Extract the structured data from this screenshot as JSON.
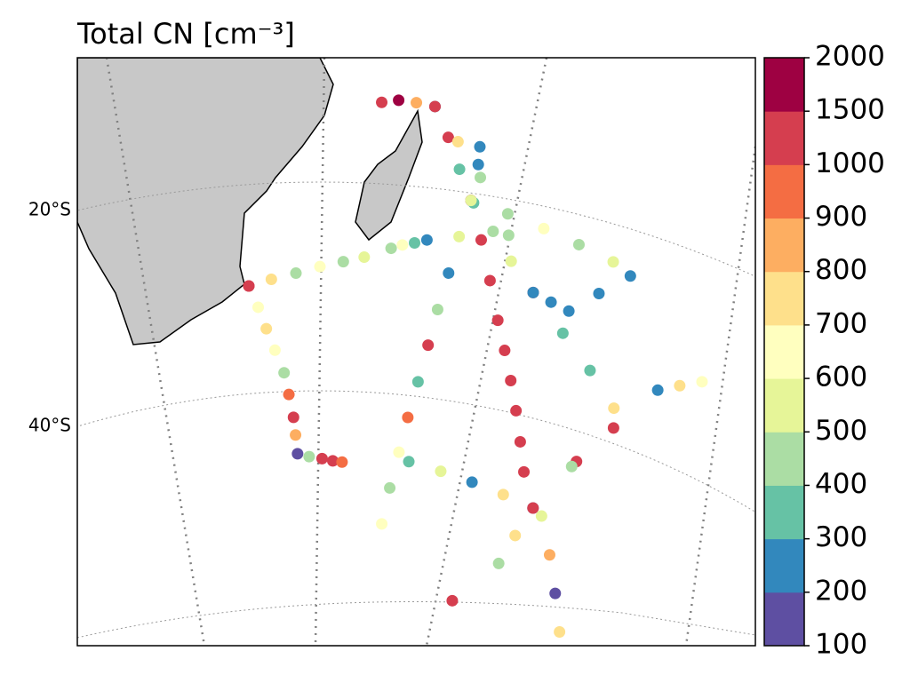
{
  "chart_data": {
    "type": "scatter",
    "title": "Total CN [cm⁻³]",
    "yticks": [
      {
        "value": -20,
        "label": "20°S"
      },
      {
        "value": -40,
        "label": "40°S"
      }
    ],
    "colorbar": {
      "bounds": [
        100,
        200,
        300,
        400,
        500,
        600,
        700,
        800,
        900,
        1000,
        1500,
        2000
      ],
      "colors": [
        "#5e4fa2",
        "#3288bd",
        "#66c2a5",
        "#abdda4",
        "#e6f598",
        "#ffffbf",
        "#fee08b",
        "#fdae61",
        "#f46d43",
        "#d53e4f",
        "#9e0142"
      ]
    },
    "tracks": [
      {
        "lon": [
          31.9,
          34.5,
          37.3,
          40.0,
          42.6,
          44.9
        ],
        "lat": [
          -29.7,
          -29.2,
          -28.7,
          -28.1,
          -27.6,
          -27.1
        ],
        "values": [
          1200,
          750,
          450,
          650,
          480,
          550
        ]
      },
      {
        "lon": [
          47.8,
          49.0,
          50.3,
          51.6
        ],
        "lat": [
          -26.1,
          -25.7,
          -25.4,
          -25.0
        ],
        "values": [
          450,
          600,
          350,
          250
        ]
      },
      {
        "lon": [
          31.9,
          32.8,
          33.6,
          34.5,
          35.5,
          36.0,
          36.5,
          36.7,
          36.9,
          38.5,
          40.3,
          41.8,
          43.1
        ],
        "lat": [
          -29.7,
          -31.8,
          -33.9,
          -36.0,
          -38.2,
          -40.3,
          -42.5,
          -44.2,
          -46.0,
          -46.3,
          -46.5,
          -46.7,
          -46.8
        ],
        "values": [
          1100,
          650,
          700,
          600,
          400,
          900,
          1200,
          850,
          150,
          400,
          1100,
          1300,
          950
        ]
      },
      {
        "lon": [
          51.0,
          52.6,
          54.1,
          55.7,
          55.0,
          54.4,
          53.7,
          53.1,
          52.4,
          51.6,
          50.9,
          50.1,
          49.4
        ],
        "lat": [
          -12.2,
          -15.0,
          -17.9,
          -20.7,
          -24.3,
          -27.9,
          -31.5,
          -35.0,
          -38.6,
          -42.1,
          -45.5,
          -49.0,
          -52.5
        ],
        "values": [
          250,
          1200,
          300,
          150,
          500,
          200,
          450,
          1100,
          350,
          900,
          600,
          400,
          650
        ]
      },
      {
        "lon": [
          51.0,
          53.6,
          56.3,
          60.2,
          64.1,
          68.5,
          72.8,
          77.0,
          74.7,
          72.4,
          75.3,
          78.1,
          81.0
        ],
        "lat": [
          -12.2,
          -15.3,
          -18.4,
          -23.4,
          -28.3,
          -31.4,
          -34.1,
          -36.8,
          -42.8,
          -48.8,
          -52.1,
          -55.4,
          -58.7
        ],
        "values": [
          1300,
          700,
          450,
          400,
          1100,
          300,
          350,
          750,
          1200,
          500,
          850,
          150,
          700
        ]
      },
      {
        "lon": [
          55.7,
          57.4,
          59.1,
          60.8,
          62.3,
          63.8,
          65.3,
          66.8,
          68.3
        ],
        "lat": [
          -20.7,
          -24.3,
          -28.0,
          -31.6,
          -34.3,
          -37.0,
          -39.7,
          -42.5,
          -45.2
        ],
        "values": [
          1200,
          1300,
          1250,
          1300,
          1200,
          1400,
          1300,
          1250,
          1200
        ]
      },
      {
        "lon": [
          55.8,
          55.9,
          56.0,
          58.5,
          61.0,
          64.1,
          66.3,
          68.5,
          71.2,
          73.9
        ],
        "lat": [
          -15.5,
          -17.2,
          -20.9,
          -23.3,
          -25.8,
          -28.3,
          -28.8,
          -29.2,
          -26.8,
          -24.3
        ],
        "values": [
          250,
          250,
          300,
          450,
          550,
          250,
          200,
          250,
          250,
          200
        ]
      },
      {
        "lon": [
          55.7,
          59.7,
          63.7,
          67.7,
          71.7
        ],
        "lat": [
          -20.7,
          -21.4,
          -22.1,
          -22.8,
          -23.5
        ],
        "values": [
          550,
          450,
          600,
          400,
          500
        ]
      },
      {
        "lon": [
          52.4,
          57.0,
          61.6,
          66.3,
          70.9,
          74.3,
          77.8,
          81.2,
          83.4,
          85.6
        ],
        "lat": [
          -46.3,
          -46.8,
          -47.3,
          -47.8,
          -48.3,
          -43.4,
          -38.6,
          -33.7,
          -32.5,
          -31.3
        ],
        "values": [
          350,
          500,
          250,
          700,
          150,
          450,
          1100,
          250,
          700,
          650
        ]
      },
      {
        "lon": [
          70.9,
          69.5,
          68.2
        ],
        "lat": [
          -48.3,
          -51.3,
          -54.3
        ],
        "values": [
          1200,
          750,
          400
        ]
      },
      {
        "lon": [
          62.3
        ],
        "lat": [
          -58.8
        ],
        "values": [
          1200
        ]
      },
      {
        "lon": [
          45.9,
          47.5,
          49.2
        ],
        "lat": [
          -12.2,
          -11.9,
          -12.0
        ],
        "values": [
          1300,
          1600,
          800
        ]
      }
    ]
  }
}
